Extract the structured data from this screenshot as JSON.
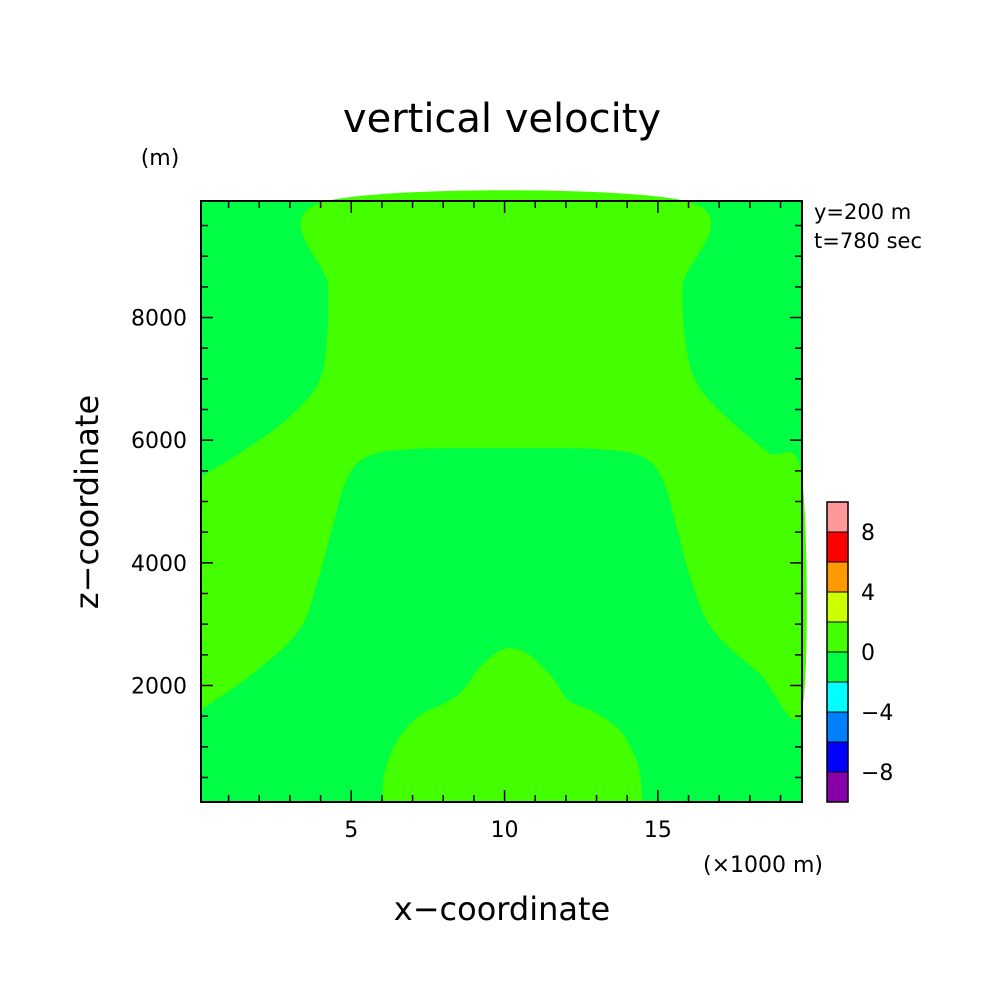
{
  "chart_data": {
    "type": "heatmap",
    "title": "vertical velocity",
    "xlabel": "x−coordinate",
    "ylabel": "z−coordinate",
    "x_unit": "(×1000 m)",
    "y_unit": "(m)",
    "annotations": [
      "y=200 m",
      "t=780 sec"
    ],
    "xlim": [
      0.1,
      19.7
    ],
    "ylim": [
      100,
      9900
    ],
    "x_ticks": [
      5,
      10,
      15
    ],
    "x_tick_labels": [
      "5",
      "10",
      "15"
    ],
    "y_ticks": [
      2000,
      4000,
      6000,
      8000
    ],
    "y_tick_labels": [
      "2000",
      "4000",
      "6000",
      "8000"
    ],
    "colorbar": {
      "levels": [
        -10,
        -8,
        -6,
        -4,
        -2,
        0,
        2,
        4,
        6,
        8,
        10
      ],
      "tick_labels": [
        "−8",
        "−4",
        "0",
        "4",
        "8"
      ],
      "tick_values": [
        -8,
        -4,
        0,
        4,
        8
      ],
      "colors": [
        "#8800aa",
        "#0000ff",
        "#0080ff",
        "#00ffff",
        "#00ff44",
        "#44ff00",
        "#ccff00",
        "#ff9900",
        "#ff0000",
        "#ff9999"
      ]
    },
    "field": {
      "background_interval": [
        -2,
        0
      ],
      "background_color": "#00ff44",
      "regions": [
        {
          "name": "upper band",
          "interval": [
            0,
            2
          ],
          "color": "#44ff00",
          "boundary": [
            [
              0.1,
              5400
            ],
            [
              1.4,
              5800
            ],
            [
              2.8,
              6300
            ],
            [
              3.9,
              6900
            ],
            [
              4.2,
              7600
            ],
            [
              4.25,
              8500
            ],
            [
              4.2,
              9900
            ],
            [
              15.9,
              9900
            ],
            [
              15.8,
              8500
            ],
            [
              15.9,
              7600
            ],
            [
              16.3,
              6900
            ],
            [
              17.4,
              6300
            ],
            [
              18.6,
              5800
            ],
            [
              19.7,
              5400
            ],
            [
              19.7,
              1600
            ],
            [
              18.3,
              2200
            ],
            [
              16.8,
              2900
            ],
            [
              16.1,
              3700
            ],
            [
              15.6,
              4600
            ],
            [
              15.2,
              5300
            ],
            [
              14.6,
              5700
            ],
            [
              13.2,
              5850
            ],
            [
              10.0,
              5870
            ],
            [
              6.8,
              5850
            ],
            [
              5.4,
              5700
            ],
            [
              4.8,
              5300
            ],
            [
              4.4,
              4600
            ],
            [
              3.9,
              3700
            ],
            [
              3.3,
              2900
            ],
            [
              1.8,
              2200
            ],
            [
              0.1,
              1600
            ]
          ]
        },
        {
          "name": "bottom bump",
          "interval": [
            0,
            2
          ],
          "color": "#44ff00",
          "boundary": [
            [
              6.0,
              100
            ],
            [
              6.1,
              600
            ],
            [
              6.5,
              1100
            ],
            [
              7.2,
              1500
            ],
            [
              8.0,
              1700
            ],
            [
              8.6,
              1900
            ],
            [
              9.2,
              2300
            ],
            [
              10.0,
              2600
            ],
            [
              10.8,
              2500
            ],
            [
              11.6,
              2100
            ],
            [
              12.1,
              1750
            ],
            [
              12.8,
              1600
            ],
            [
              13.7,
              1300
            ],
            [
              14.2,
              900
            ],
            [
              14.4,
              600
            ],
            [
              14.5,
              100
            ]
          ]
        }
      ]
    }
  }
}
